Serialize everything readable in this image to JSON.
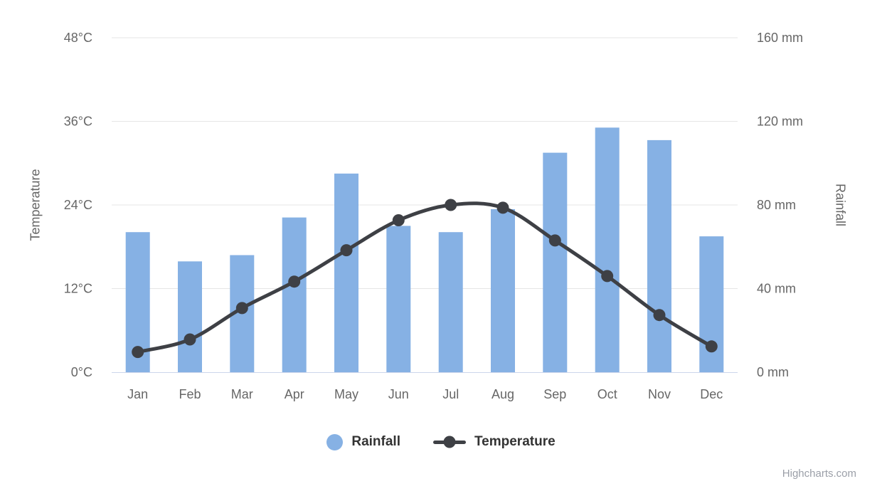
{
  "chart_data": {
    "type": "combo",
    "title": "",
    "categories": [
      "Jan",
      "Feb",
      "Mar",
      "Apr",
      "May",
      "Jun",
      "Jul",
      "Aug",
      "Sep",
      "Oct",
      "Nov",
      "Dec"
    ],
    "series": [
      {
        "name": "Rainfall",
        "type": "column",
        "axis": "right",
        "unit": "mm",
        "color": "#86b1e4",
        "values": [
          67,
          53,
          56,
          74,
          95,
          70,
          67,
          78,
          105,
          117,
          111,
          65
        ]
      },
      {
        "name": "Temperature",
        "type": "spline",
        "axis": "left",
        "unit": "°C",
        "color": "#3e4045",
        "values": [
          2.9,
          4.7,
          9.2,
          13.0,
          17.5,
          21.8,
          24.0,
          23.6,
          18.9,
          13.8,
          8.2,
          3.7
        ]
      }
    ],
    "y_left": {
      "title": "Temperature",
      "min": 0,
      "max": 48,
      "tick_interval": 12,
      "tick_labels": [
        "0°C",
        "12°C",
        "24°C",
        "36°C",
        "48°C"
      ]
    },
    "y_right": {
      "title": "Rainfall",
      "min": 0,
      "max": 160,
      "tick_interval": 40,
      "tick_labels": [
        "0 mm",
        "40 mm",
        "80 mm",
        "120 mm",
        "160 mm"
      ]
    },
    "legend": {
      "position": "bottom",
      "items": [
        "Rainfall",
        "Temperature"
      ]
    },
    "grid": true
  },
  "styles": {
    "background": "#ffffff",
    "grid_color": "#e6e6e6",
    "axis_line_color": "#ccd6eb",
    "label_color": "#666666",
    "legend_text_color": "#333333"
  },
  "credits": {
    "text": "Highcharts.com",
    "color": "#9b9fa8"
  }
}
